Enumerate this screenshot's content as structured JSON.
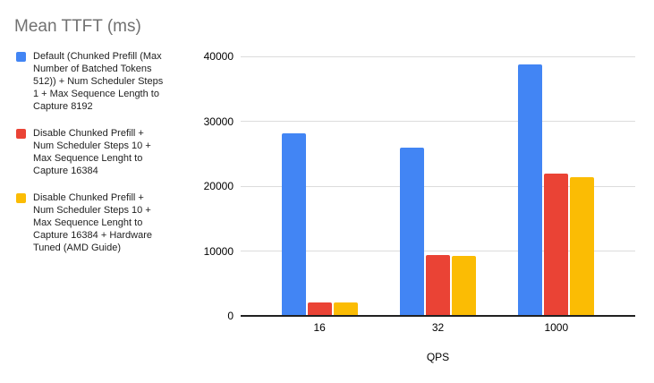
{
  "chart_data": {
    "type": "bar",
    "title": "Mean TTFT (ms)",
    "xlabel": "QPS",
    "ylabel": "",
    "categories": [
      "16",
      "32",
      "1000"
    ],
    "series": [
      {
        "name": "Default (Chunked Prefill (Max Number of Batched Tokens 512)) + Num Scheduler Steps 1 + Max Sequence Length to Capture 8192",
        "label_lines": [
          "Default (Chunked Prefill (Max",
          "Number of Batched Tokens",
          "512)) + Num Scheduler Steps",
          "1 + Max Sequence Length to",
          "Capture 8192"
        ],
        "color": "#4285F4",
        "values": [
          28200,
          25900,
          38700
        ]
      },
      {
        "name": "Disable Chunked Prefill + Num Scheduler Steps 10 + Max Sequence Lenght to Capture 16384",
        "label_lines": [
          "Disable Chunked Prefill +",
          "Num Scheduler Steps 10 +",
          "Max Sequence Lenght to",
          "Capture 16384"
        ],
        "color": "#EA4335",
        "values": [
          2100,
          9400,
          21900
        ]
      },
      {
        "name": "Disable Chunked Prefill + Num Scheduler Steps 10 + Max Sequence Lenght to Capture 16384 + Hardware Tuned (AMD Guide)",
        "label_lines": [
          "Disable Chunked Prefill +",
          "Num Scheduler Steps 10 +",
          "Max Sequence Lenght to",
          "Capture 16384 + Hardware",
          "Tuned (AMD Guide)"
        ],
        "color": "#FBBC04",
        "values": [
          2050,
          9200,
          21400
        ]
      }
    ],
    "yticks": [
      0,
      10000,
      20000,
      30000,
      40000
    ],
    "ylim": [
      0,
      40000
    ],
    "legend_position": "left",
    "grid": true
  },
  "style_colors": {
    "title_text": "#717171",
    "legend_text": "#1F1F1F",
    "tick_text": "#000000",
    "gridline": "#DCDCDC",
    "axis_line": "#212121"
  }
}
